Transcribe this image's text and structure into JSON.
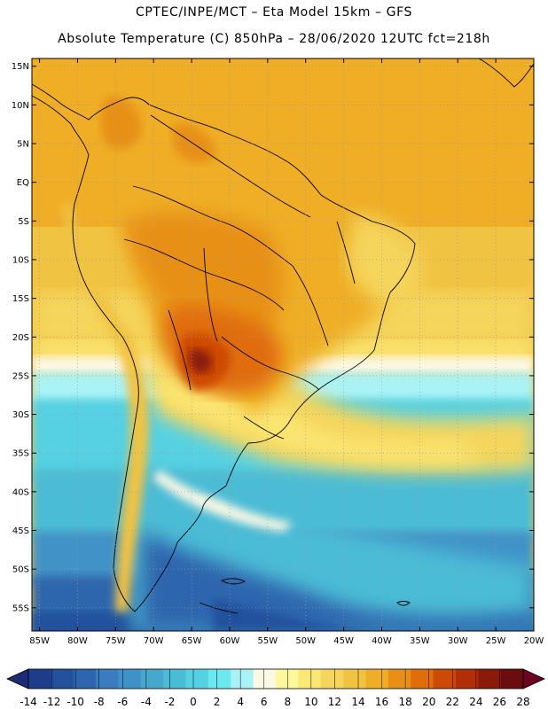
{
  "header": {
    "line1": "CPTEC/INPE/MCT –  Eta Model 15km – GFS",
    "line2": "Absolute Temperature (C) 850hPa – 28/06/2020 12UTC fct=218h"
  },
  "map": {
    "lat_labels": [
      "15N",
      "10N",
      "5N",
      "EQ",
      "5S",
      "10S",
      "15S",
      "20S",
      "25S",
      "30S",
      "35S",
      "40S",
      "45S",
      "50S",
      "55S"
    ],
    "lon_labels": [
      "85W",
      "80W",
      "75W",
      "70W",
      "65W",
      "60W",
      "55W",
      "50W",
      "45W",
      "40W",
      "35W",
      "30W",
      "25W",
      "20W"
    ],
    "lat_range": [
      -58,
      16
    ],
    "lon_range": [
      -86,
      -20
    ]
  },
  "colorbar": {
    "ticks": [
      "-14",
      "-12",
      "-10",
      "-8",
      "-6",
      "-4",
      "-2",
      "0",
      "2",
      "4",
      "6",
      "8",
      "10",
      "12",
      "14",
      "16",
      "18",
      "20",
      "22",
      "24",
      "26",
      "28"
    ],
    "colors": [
      "#1d3c8a",
      "#24519c",
      "#2d66ae",
      "#3a7cbd",
      "#3f92c7",
      "#45a8cc",
      "#4bbcd6",
      "#55d1e3",
      "#6ce8f0",
      "#a9f3f7",
      "#fbf8e4",
      "#fff79b",
      "#fbe775",
      "#f5d55b",
      "#f1c343",
      "#efae26",
      "#e89016",
      "#e06c0a",
      "#cd4a06",
      "#b12e07",
      "#8a1a0a",
      "#6a0d0c"
    ],
    "under_color": "#1b2c74",
    "over_color": "#6a0420"
  }
}
